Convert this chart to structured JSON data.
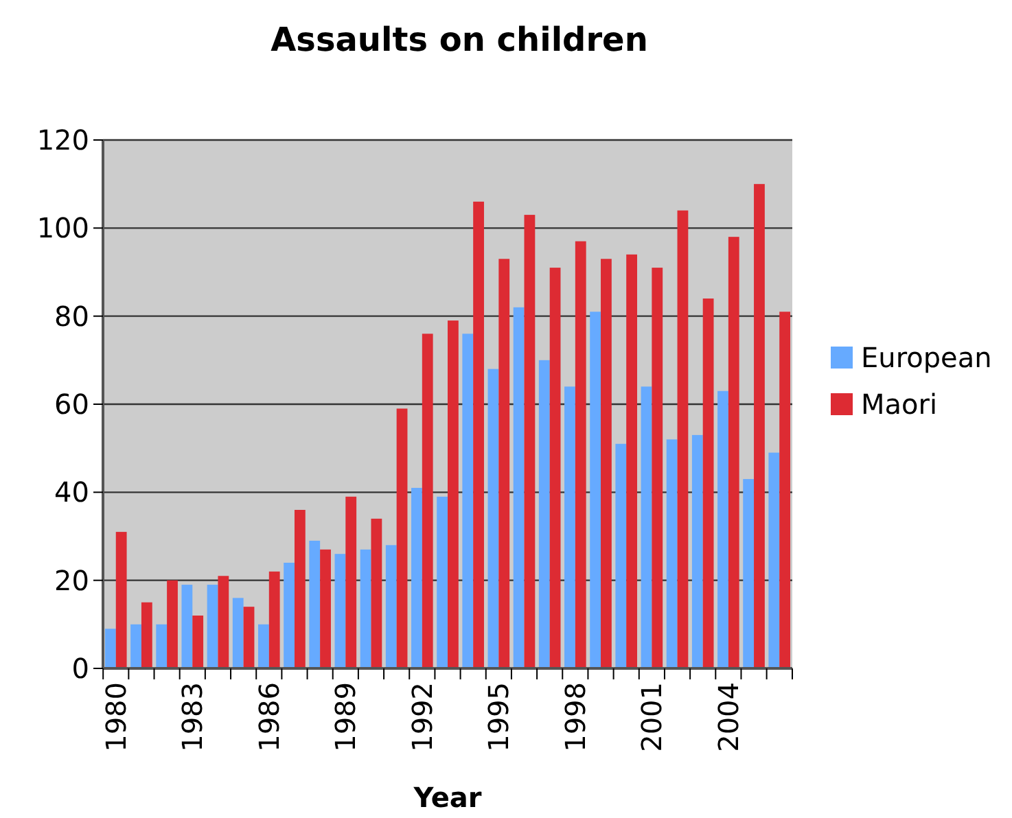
{
  "chart_data": {
    "type": "bar",
    "title": "Assaults on children",
    "xlabel": "Year",
    "categories": [
      "1980",
      null,
      null,
      "1983",
      null,
      null,
      "1986",
      null,
      null,
      "1989",
      null,
      null,
      "1992",
      null,
      null,
      "1995",
      null,
      null,
      "1998",
      null,
      null,
      "2001",
      null,
      null,
      "2004",
      null,
      null
    ],
    "series": [
      {
        "name": "European",
        "color": "#66aaff",
        "values": [
          9,
          10,
          10,
          19,
          19,
          16,
          10,
          24,
          29,
          26,
          27,
          28,
          41,
          39,
          76,
          68,
          82,
          70,
          64,
          81,
          51,
          64,
          52,
          53,
          63,
          43,
          49
        ]
      },
      {
        "name": "Maori",
        "color": "#dd2b33",
        "values": [
          31,
          15,
          20,
          12,
          21,
          14,
          22,
          36,
          27,
          39,
          34,
          59,
          76,
          79,
          106,
          93,
          103,
          91,
          97,
          93,
          94,
          91,
          104,
          84,
          98,
          110,
          81
        ]
      }
    ],
    "ylim": [
      0,
      120
    ],
    "yticks": [
      0,
      20,
      40,
      60,
      80,
      100,
      120
    ],
    "grid": "y",
    "legend": "right"
  }
}
